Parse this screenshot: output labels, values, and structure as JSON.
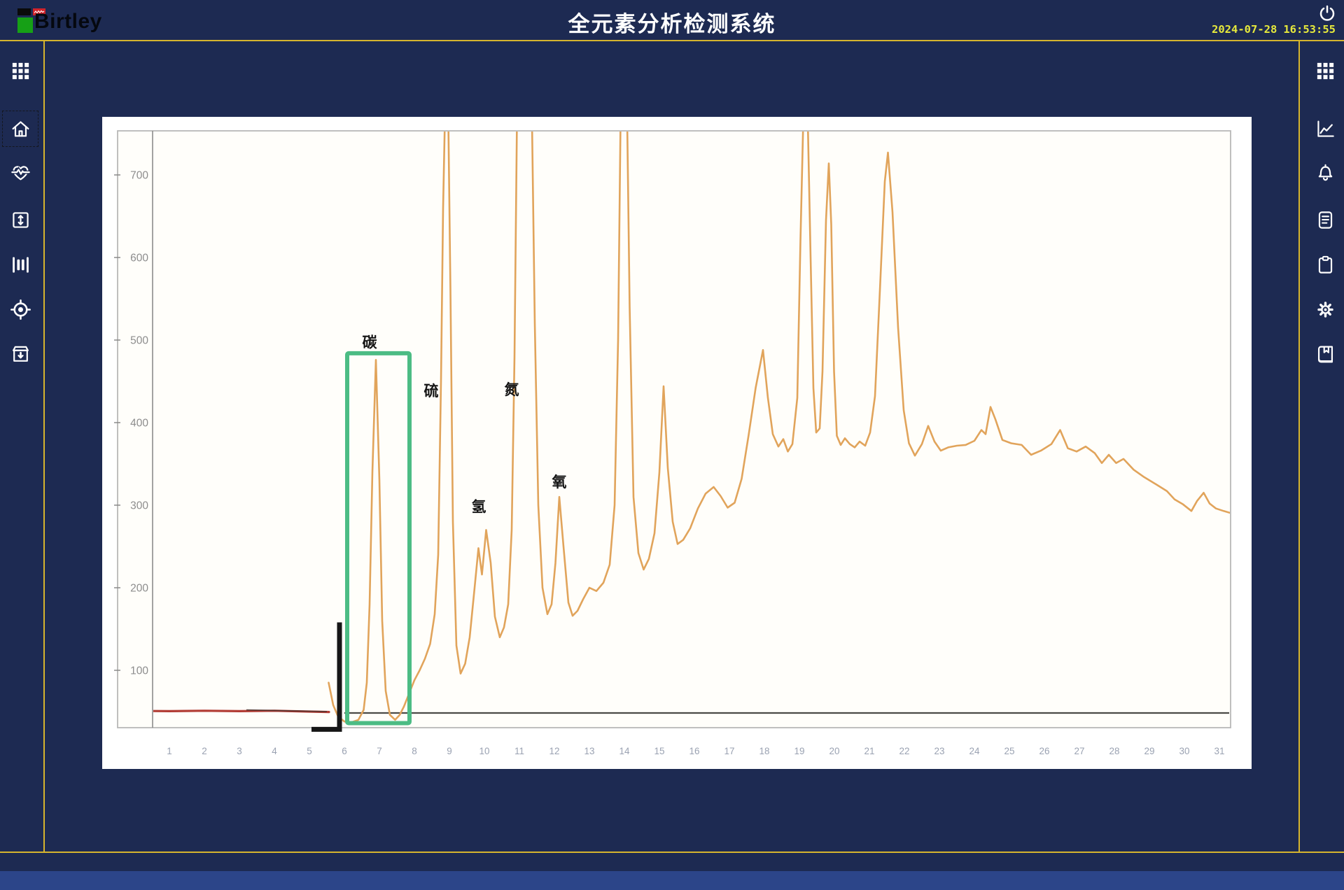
{
  "header": {
    "logo_text": "Birtley",
    "title": "全元素分析检测系统",
    "date": "2024-07-28",
    "time": "16:53:55"
  },
  "left_sidebar": {
    "items": [
      {
        "name": "apps",
        "icon": "grid-icon",
        "selected": false
      },
      {
        "name": "home",
        "icon": "home-icon",
        "selected": true
      },
      {
        "name": "monitor",
        "icon": "heartbeat-icon",
        "selected": false
      },
      {
        "name": "expand",
        "icon": "vertical-expand-icon",
        "selected": false
      },
      {
        "name": "columns",
        "icon": "columns-icon",
        "selected": false
      },
      {
        "name": "target",
        "icon": "target-icon",
        "selected": false
      },
      {
        "name": "archive",
        "icon": "archive-down-icon",
        "selected": false
      }
    ]
  },
  "right_sidebar": {
    "items": [
      {
        "name": "apps",
        "icon": "grid-icon"
      },
      {
        "name": "trend",
        "icon": "line-chart-icon"
      },
      {
        "name": "alarms",
        "icon": "bell-icon"
      },
      {
        "name": "report",
        "icon": "report-icon"
      },
      {
        "name": "tasks",
        "icon": "clipboard-icon"
      },
      {
        "name": "settings",
        "icon": "gear-icon"
      },
      {
        "name": "manual",
        "icon": "book-icon"
      }
    ]
  },
  "colors": {
    "background_navy": "#1d2a52",
    "gold_line": "#d6b42e",
    "panel_white": "#ffffff",
    "scan_paper": "#fffefa",
    "trace_orange": "#e1a45b",
    "baseline_red": "#b23c34",
    "highlight_green": "#4cbc84",
    "datetime_yellow": "#e6e93c",
    "bottom_bar_blue": "#2c4589",
    "axis_label_gray": "#8d8d8d",
    "x_label_gray": "#9aa2b2"
  },
  "chart_data": {
    "type": "line",
    "title": "",
    "xlabel": "",
    "ylabel": "",
    "x_ticks": [
      1,
      2,
      3,
      4,
      5,
      6,
      7,
      8,
      9,
      10,
      11,
      12,
      13,
      14,
      15,
      16,
      17,
      18,
      19,
      20,
      21,
      22,
      23,
      24,
      25,
      26,
      27,
      28,
      29,
      30,
      31
    ],
    "y_ticks": [
      700,
      600,
      500,
      400,
      300,
      200,
      100
    ],
    "xlim": [
      -0.6,
      31.8
    ],
    "ylim": [
      0,
      750
    ],
    "grid": false,
    "legend": false,
    "clip_note": "peaks near t=8.9, 11.1, 14.0 and 19.2 run off-scale and are clipped at the plot top",
    "element_labels": [
      {
        "label": "碳",
        "t": 6.72,
        "v": 497
      },
      {
        "label": "硫",
        "t": 8.48,
        "v": 438
      },
      {
        "label": "氢",
        "t": 9.84,
        "v": 298
      },
      {
        "label": "氮",
        "t": 10.78,
        "v": 440
      },
      {
        "label": "氧",
        "t": 12.14,
        "v": 328
      }
    ],
    "highlight_box": {
      "t1": 6.08,
      "t2": 7.86,
      "v1": 36,
      "v2": 484,
      "color": "#4cbc84"
    },
    "bracket": {
      "t": 5.86,
      "foot_t": 5.06,
      "v_top": 158,
      "v_bottom": 26,
      "color": "#161616"
    },
    "series": [
      {
        "name": "baseline-red",
        "color": "#b23c34",
        "width": 3.2,
        "points": [
          [
            -0.3,
            51
          ],
          [
            1,
            50.5
          ],
          [
            2,
            51
          ],
          [
            3,
            50.5
          ],
          [
            4,
            51
          ],
          [
            5,
            50
          ],
          [
            5.56,
            49.5
          ]
        ]
      },
      {
        "name": "chromatogram-trace",
        "color": "#e1a45b",
        "width": 2.6,
        "points": [
          [
            5.55,
            85
          ],
          [
            5.68,
            58
          ],
          [
            5.82,
            44
          ],
          [
            6.0,
            38
          ],
          [
            6.2,
            37
          ],
          [
            6.4,
            40
          ],
          [
            6.55,
            52
          ],
          [
            6.64,
            85
          ],
          [
            6.72,
            180
          ],
          [
            6.8,
            340
          ],
          [
            6.9,
            476
          ],
          [
            7.0,
            330
          ],
          [
            7.08,
            160
          ],
          [
            7.18,
            75
          ],
          [
            7.3,
            46
          ],
          [
            7.45,
            40
          ],
          [
            7.58,
            46
          ],
          [
            7.7,
            56
          ],
          [
            7.85,
            72
          ],
          [
            8.0,
            88
          ],
          [
            8.15,
            100
          ],
          [
            8.3,
            114
          ],
          [
            8.45,
            132
          ],
          [
            8.58,
            168
          ],
          [
            8.68,
            240
          ],
          [
            8.76,
            450
          ],
          [
            8.82,
            660
          ],
          [
            8.87,
            765
          ],
          [
            8.97,
            765
          ],
          [
            9.03,
            560
          ],
          [
            9.1,
            280
          ],
          [
            9.2,
            130
          ],
          [
            9.32,
            96
          ],
          [
            9.45,
            108
          ],
          [
            9.58,
            140
          ],
          [
            9.72,
            200
          ],
          [
            9.83,
            248
          ],
          [
            9.93,
            216
          ],
          [
            10.05,
            270
          ],
          [
            10.18,
            230
          ],
          [
            10.3,
            165
          ],
          [
            10.44,
            140
          ],
          [
            10.56,
            152
          ],
          [
            10.68,
            180
          ],
          [
            10.78,
            270
          ],
          [
            10.86,
            480
          ],
          [
            10.93,
            765
          ],
          [
            11.36,
            765
          ],
          [
            11.44,
            520
          ],
          [
            11.54,
            300
          ],
          [
            11.66,
            200
          ],
          [
            11.8,
            168
          ],
          [
            11.92,
            180
          ],
          [
            12.03,
            230
          ],
          [
            12.14,
            310
          ],
          [
            12.26,
            250
          ],
          [
            12.4,
            182
          ],
          [
            12.52,
            166
          ],
          [
            12.66,
            172
          ],
          [
            12.82,
            186
          ],
          [
            13.0,
            200
          ],
          [
            13.2,
            196
          ],
          [
            13.4,
            206
          ],
          [
            13.58,
            228
          ],
          [
            13.72,
            300
          ],
          [
            13.82,
            500
          ],
          [
            13.89,
            765
          ],
          [
            14.08,
            765
          ],
          [
            14.15,
            540
          ],
          [
            14.26,
            310
          ],
          [
            14.4,
            242
          ],
          [
            14.55,
            222
          ],
          [
            14.7,
            235
          ],
          [
            14.86,
            266
          ],
          [
            15.0,
            340
          ],
          [
            15.12,
            444
          ],
          [
            15.24,
            345
          ],
          [
            15.38,
            280
          ],
          [
            15.52,
            253
          ],
          [
            15.68,
            258
          ],
          [
            15.88,
            272
          ],
          [
            16.1,
            296
          ],
          [
            16.32,
            314
          ],
          [
            16.55,
            322
          ],
          [
            16.75,
            311
          ],
          [
            16.95,
            297
          ],
          [
            17.15,
            303
          ],
          [
            17.35,
            332
          ],
          [
            17.55,
            385
          ],
          [
            17.75,
            442
          ],
          [
            17.96,
            488
          ],
          [
            18.1,
            430
          ],
          [
            18.24,
            386
          ],
          [
            18.4,
            371
          ],
          [
            18.54,
            380
          ],
          [
            18.67,
            365
          ],
          [
            18.8,
            374
          ],
          [
            18.94,
            430
          ],
          [
            19.03,
            620
          ],
          [
            19.11,
            765
          ],
          [
            19.24,
            765
          ],
          [
            19.32,
            600
          ],
          [
            19.4,
            442
          ],
          [
            19.48,
            388
          ],
          [
            19.58,
            393
          ],
          [
            19.66,
            462
          ],
          [
            19.76,
            645
          ],
          [
            19.84,
            714
          ],
          [
            19.91,
            640
          ],
          [
            19.99,
            462
          ],
          [
            20.07,
            384
          ],
          [
            20.18,
            373
          ],
          [
            20.3,
            381
          ],
          [
            20.44,
            374
          ],
          [
            20.58,
            370
          ],
          [
            20.72,
            377
          ],
          [
            20.88,
            372
          ],
          [
            21.02,
            388
          ],
          [
            21.16,
            432
          ],
          [
            21.3,
            560
          ],
          [
            21.44,
            692
          ],
          [
            21.53,
            727
          ],
          [
            21.66,
            655
          ],
          [
            21.82,
            515
          ],
          [
            21.98,
            415
          ],
          [
            22.13,
            375
          ],
          [
            22.3,
            360
          ],
          [
            22.5,
            374
          ],
          [
            22.68,
            396
          ],
          [
            22.86,
            377
          ],
          [
            23.04,
            366
          ],
          [
            23.25,
            370
          ],
          [
            23.5,
            372
          ],
          [
            23.75,
            373
          ],
          [
            24.0,
            378
          ],
          [
            24.2,
            391
          ],
          [
            24.32,
            386
          ],
          [
            24.46,
            419
          ],
          [
            24.6,
            404
          ],
          [
            24.8,
            379
          ],
          [
            25.05,
            375
          ],
          [
            25.35,
            373
          ],
          [
            25.62,
            361
          ],
          [
            25.9,
            366
          ],
          [
            26.2,
            374
          ],
          [
            26.45,
            391
          ],
          [
            26.67,
            369
          ],
          [
            26.92,
            365
          ],
          [
            27.18,
            371
          ],
          [
            27.44,
            363
          ],
          [
            27.64,
            351
          ],
          [
            27.84,
            361
          ],
          [
            28.05,
            351
          ],
          [
            28.26,
            356
          ],
          [
            28.55,
            343
          ],
          [
            28.85,
            334
          ],
          [
            29.2,
            325
          ],
          [
            29.5,
            317
          ],
          [
            29.72,
            307
          ],
          [
            29.96,
            301
          ],
          [
            30.2,
            293
          ],
          [
            30.36,
            305
          ],
          [
            30.55,
            315
          ],
          [
            30.72,
            302
          ],
          [
            30.9,
            296
          ],
          [
            31.12,
            293
          ],
          [
            31.36,
            290
          ]
        ]
      }
    ]
  }
}
